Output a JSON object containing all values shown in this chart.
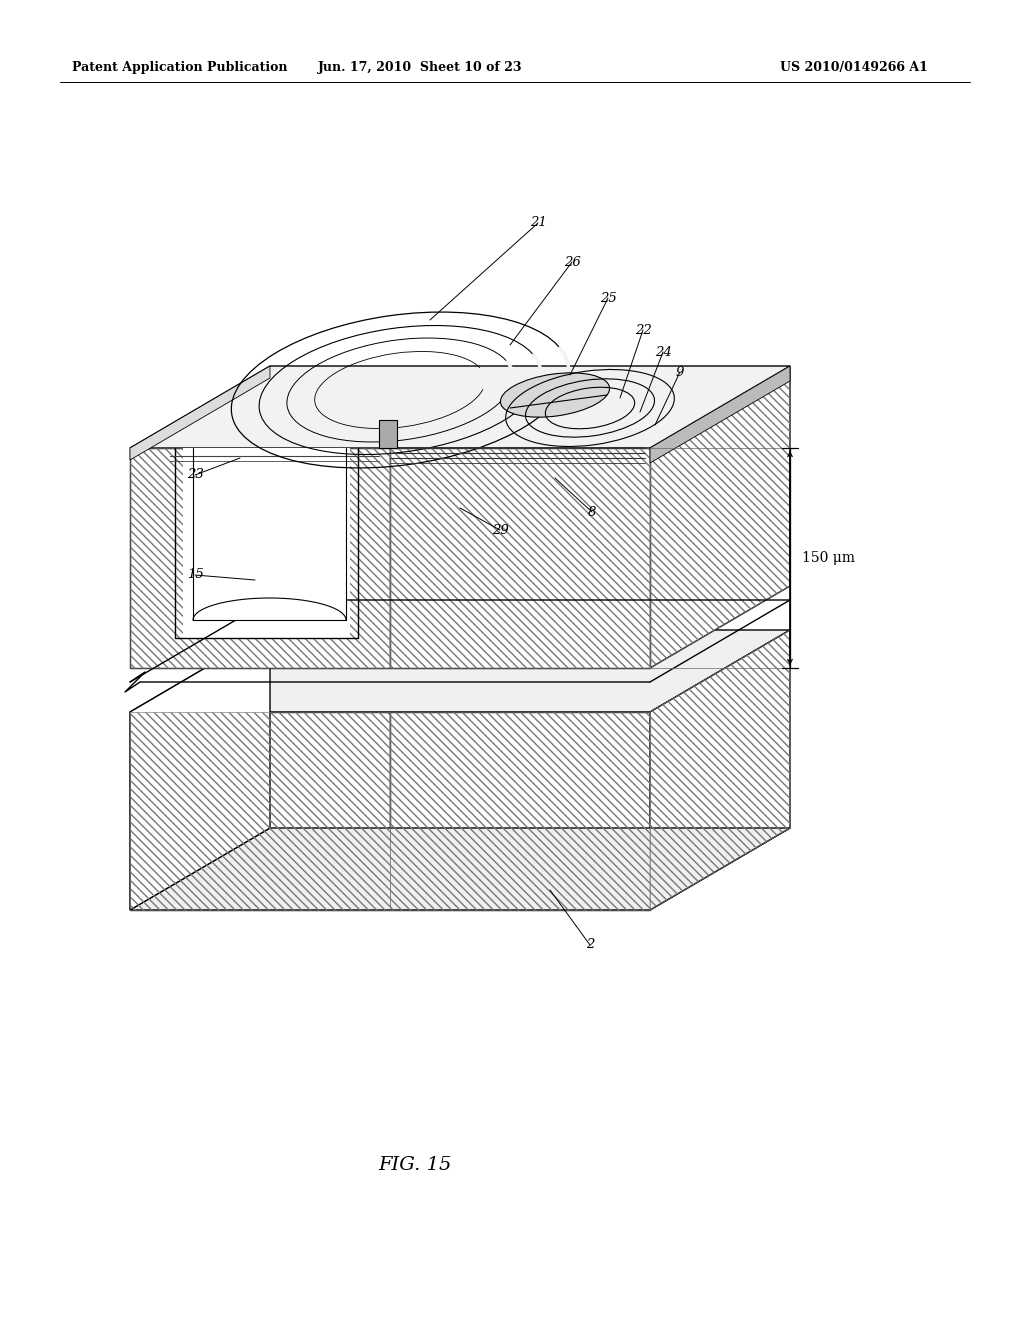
{
  "header_left": "Patent Application Publication",
  "header_center": "Jun. 17, 2010  Sheet 10 of 23",
  "header_right": "US 2010/0149266 A1",
  "figure_label": "FIG. 15",
  "background_color": "#ffffff",
  "line_color": "#000000",
  "hatch_color": "#666666"
}
